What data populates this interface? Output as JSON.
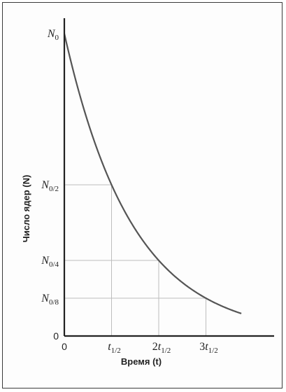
{
  "chart_data": {
    "type": "line",
    "xlabel": "Время (t)",
    "ylabel": "Число ядер (N)",
    "x_unit": "half-lives",
    "xlim": [
      0,
      3.75
    ],
    "ylim": [
      0,
      1
    ],
    "x_ticks": [
      {
        "value": 0,
        "label": "0"
      },
      {
        "value": 1,
        "label": "t1/2"
      },
      {
        "value": 2,
        "label": "2t1/2"
      },
      {
        "value": 3,
        "label": "3t1/2"
      }
    ],
    "y_ticks": [
      {
        "value": 0,
        "label": "0"
      },
      {
        "value": 0.125,
        "label": "N0/8"
      },
      {
        "value": 0.25,
        "label": "N0/4"
      },
      {
        "value": 0.5,
        "label": "N0/2"
      },
      {
        "value": 1,
        "label": "N0"
      }
    ],
    "series": [
      {
        "function": "N0 * 2^(-t/t1/2)",
        "x_range": [
          0,
          3.75
        ]
      }
    ],
    "guides": [
      {
        "x": 1,
        "y": 0.5
      },
      {
        "x": 2,
        "y": 0.25
      },
      {
        "x": 3,
        "y": 0.125
      }
    ],
    "grid": false,
    "colors": {
      "curve": "#555555",
      "axis": "#222222",
      "guide": "#bdbdbd"
    }
  }
}
